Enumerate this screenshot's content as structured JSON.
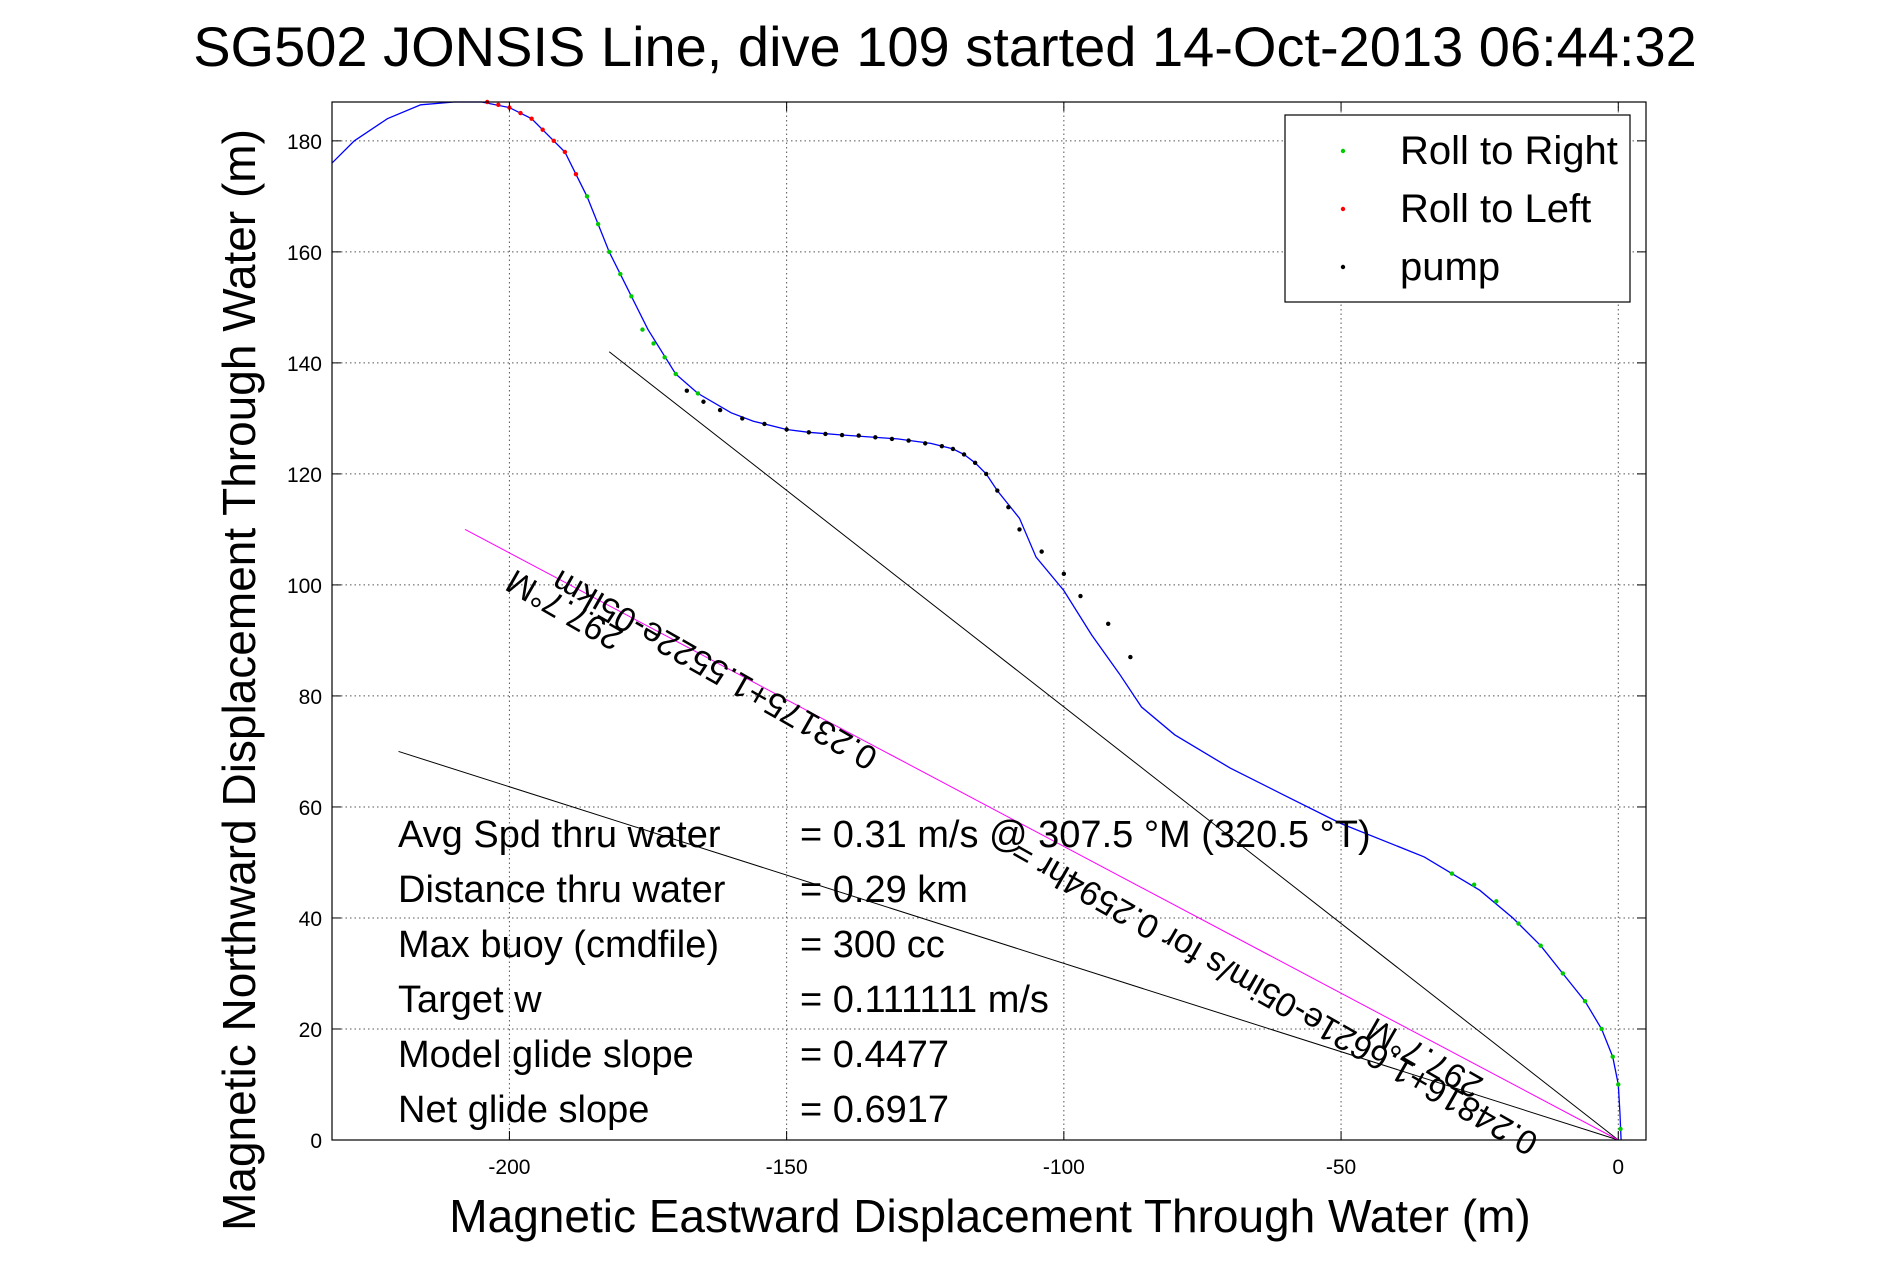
{
  "chart_data": {
    "type": "line",
    "title": "SG502 JONSIS Line, dive 109 started 14-Oct-2013 06:44:32",
    "xlabel": "Magnetic Eastward Displacement Through Water (m)",
    "ylabel": "Magnetic Northward Displacement Through Water (m)",
    "xlim": [
      -232,
      5
    ],
    "ylim": [
      0,
      187
    ],
    "xticks": [
      -200,
      -150,
      -100,
      -50,
      0
    ],
    "yticks": [
      0,
      20,
      40,
      60,
      80,
      100,
      120,
      140,
      160,
      180
    ],
    "grid": true,
    "legend_position": "top-right",
    "legend": [
      {
        "label": "Roll to Right",
        "color": "#00cc00"
      },
      {
        "label": "Roll to Left",
        "color": "#ff0000"
      },
      {
        "label": "pump",
        "color": "#000000"
      }
    ],
    "track": {
      "name": "track",
      "color": "#0000ff",
      "x": [
        0.5,
        0.3,
        0,
        -1,
        -3,
        -6,
        -10,
        -14,
        -19,
        -25,
        -30,
        -35,
        -40,
        -50,
        -60,
        -70,
        -80,
        -86,
        -90,
        -95,
        -100,
        -105,
        -108,
        -112,
        -114,
        -116,
        -118,
        -120,
        -124,
        -130,
        -140,
        -146,
        -150,
        -156,
        -160,
        -166,
        -170,
        -175,
        -178,
        -180,
        -182,
        -184,
        -186,
        -188,
        -190,
        -193,
        -196,
        -200,
        -205,
        -210,
        -216,
        -222,
        -228,
        -232
      ],
      "y": [
        0,
        5,
        10,
        15,
        20,
        25,
        30,
        35,
        40,
        45,
        48,
        51,
        53,
        57,
        62,
        67,
        73,
        78,
        84,
        91,
        99,
        105,
        112,
        117,
        120,
        122,
        123.5,
        124.5,
        125.5,
        126.3,
        127,
        127.5,
        128,
        129.5,
        131,
        134.5,
        138,
        146,
        152,
        156,
        160,
        165,
        170,
        174,
        178,
        181,
        184,
        186,
        187,
        187,
        186.5,
        184,
        180,
        176
      ]
    },
    "roll_right_points": {
      "x": [
        0.4,
        0,
        -1,
        -3,
        -6,
        -10,
        -14,
        -18,
        -22,
        -26,
        -30,
        -166,
        -170,
        -172,
        -174,
        -176,
        -178,
        -180,
        -182,
        -184,
        -186
      ],
      "y": [
        2,
        10,
        15,
        20,
        25,
        30,
        35,
        39,
        43,
        46,
        48,
        134.5,
        138,
        141,
        143.5,
        146,
        152,
        156,
        160,
        165,
        170
      ]
    },
    "roll_left_points": {
      "x": [
        -188,
        -190,
        -192,
        -194,
        -196,
        -198,
        -200,
        -202,
        -204
      ],
      "y": [
        174,
        178,
        180,
        182,
        184,
        185,
        186,
        186.5,
        187
      ]
    },
    "pump_points": {
      "x": [
        -88,
        -92,
        -97,
        -100,
        -104,
        -108,
        -110,
        -112,
        -114,
        -116,
        -118,
        -120,
        -122,
        -125,
        -128,
        -131,
        -134,
        -137,
        -140,
        -143,
        -146,
        -150,
        -154,
        -158,
        -162,
        -165,
        -168
      ],
      "y": [
        87,
        93,
        98,
        102,
        106,
        110,
        114,
        117,
        120,
        122,
        123.5,
        124.5,
        125,
        125.5,
        126,
        126.3,
        126.6,
        126.9,
        127,
        127.2,
        127.5,
        128,
        129,
        130,
        131.5,
        133,
        135
      ]
    },
    "reference_lines": [
      {
        "x": [
          0,
          -182
        ],
        "y": [
          0,
          142
        ]
      },
      {
        "x": [
          0,
          -220
        ],
        "y": [
          0,
          70
        ]
      },
      {
        "x": [
          0,
          -208
        ],
        "y": [
          0,
          110
        ],
        "color": "#ff00ff"
      }
    ],
    "annotations": {
      "rotated_label_upper": "297.7°M",
      "rotated_label_lower": "297.7°M",
      "fit_upper": "0.23175+1.5522e-05ikm",
      "fit_lower": "0.24816+1.6621e-05im/s for 0.2594hr ="
    },
    "stats": [
      {
        "label": "Avg Spd thru water",
        "value": "=  0.31 m/s @ 307.5 °M (320.5 °T)"
      },
      {
        "label": "Distance thru water",
        "value": "=  0.29 km"
      },
      {
        "label": "Max buoy (cmdfile)",
        "value": "= 300 cc"
      },
      {
        "label": "Target w",
        "value": "= 0.111111 m/s"
      },
      {
        "label": "Model glide slope",
        "value": "= 0.4477"
      },
      {
        "label": "Net glide slope",
        "value": "= 0.6917"
      }
    ]
  }
}
